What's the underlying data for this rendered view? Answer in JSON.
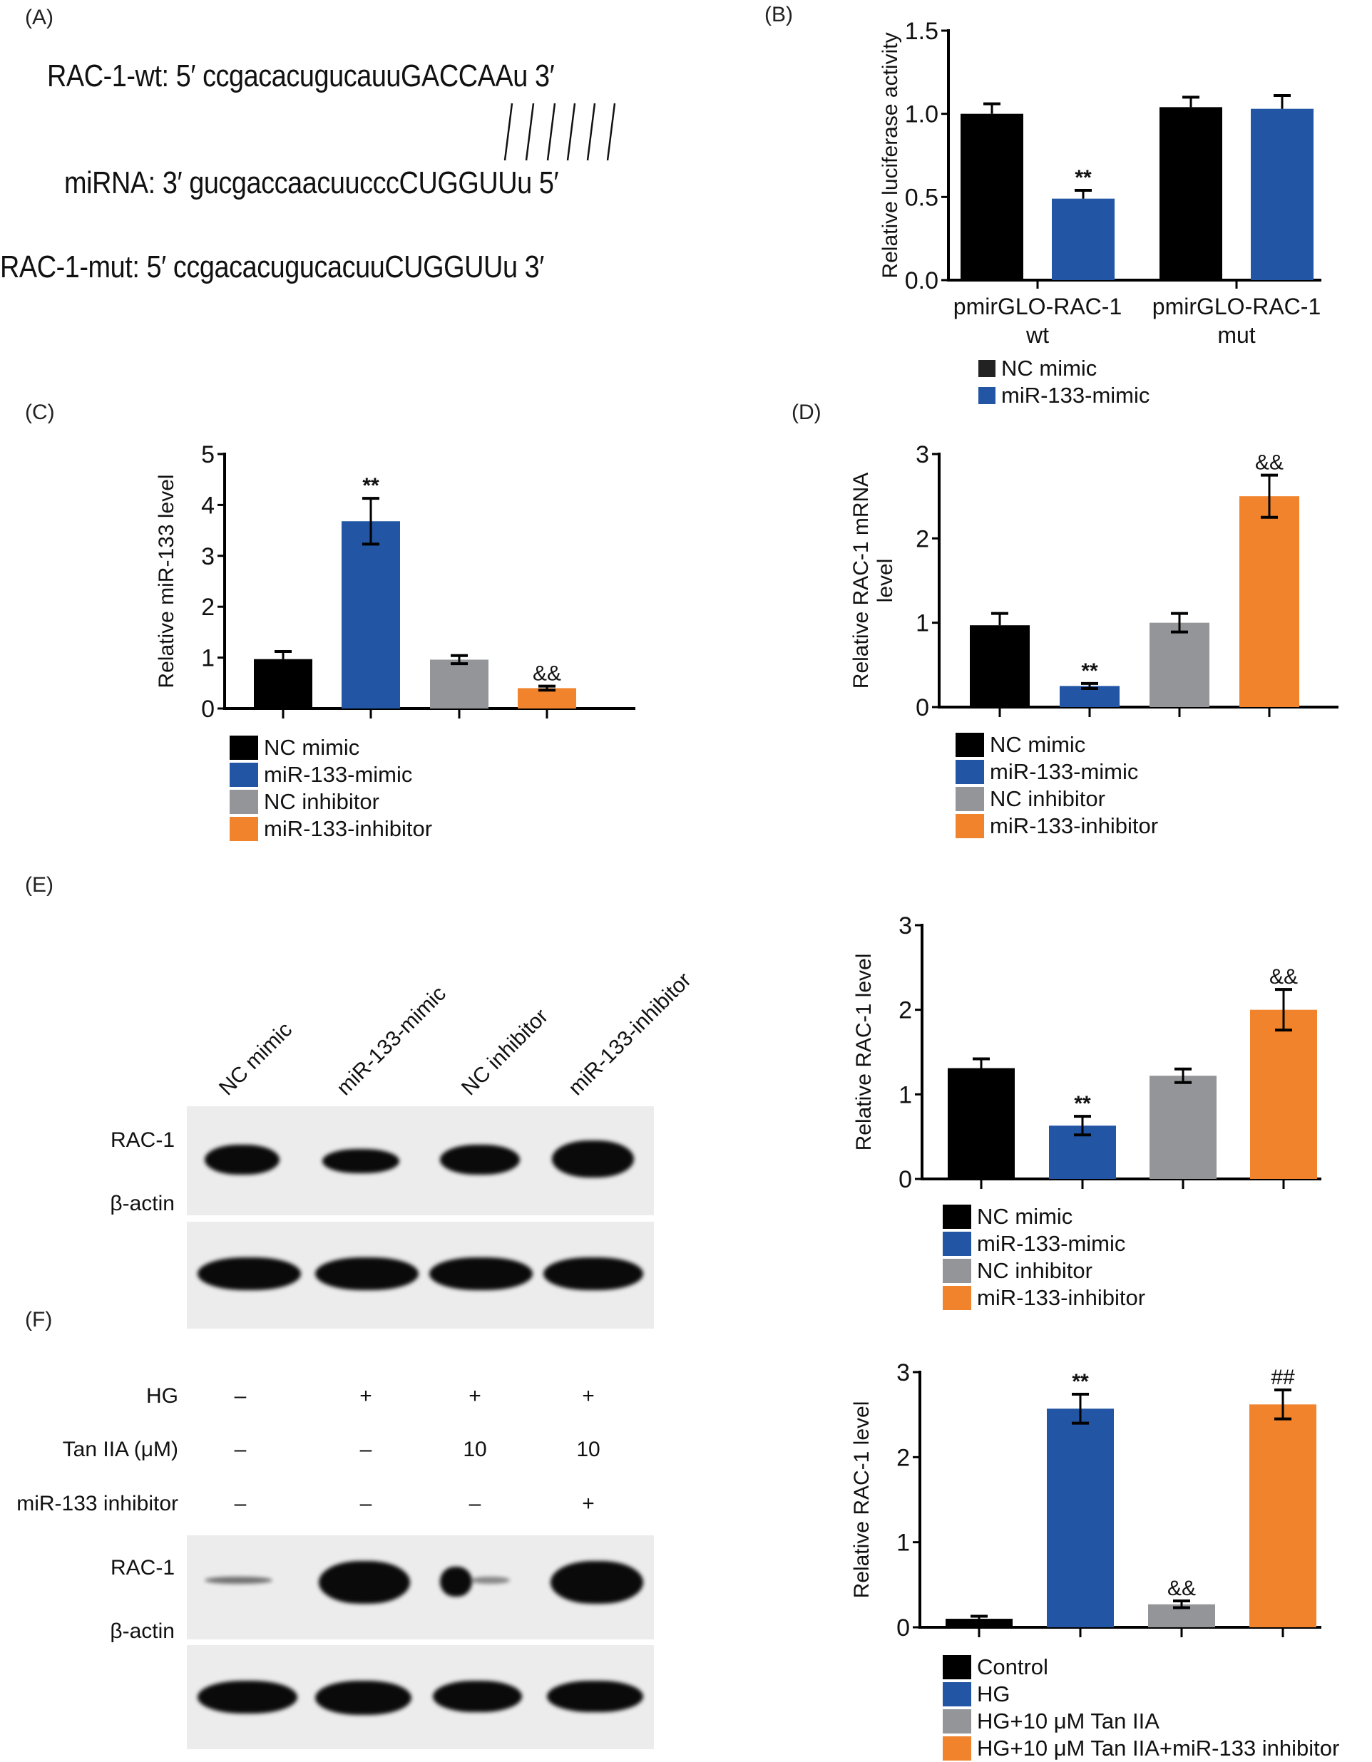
{
  "panels": {
    "A": {
      "label": "(A)",
      "wt": "RAC-1-wt: 5′ ccgacacugucauuGACCAAu 3′",
      "mirna": "miRNA: 3′ gucgaccaacuucccCUGGUUu 5′",
      "mut": "RAC-1-mut: 5′ ccgacacugucacuuCUGGUUu 3′",
      "pairing_lines": 6
    },
    "B": {
      "label": "(B)"
    },
    "C": {
      "label": "(C)"
    },
    "D": {
      "label": "(D)"
    },
    "E": {
      "label": "(E)",
      "lanes": [
        "NC mimic",
        "miR-133-mimic",
        "NC inhibitor",
        "miR-133-inhibitor"
      ],
      "rows": [
        "RAC-1",
        "β-actin"
      ]
    },
    "F": {
      "label": "(F)",
      "conditions": [
        {
          "name": "HG",
          "values": [
            "–",
            "+",
            "+",
            "+"
          ]
        },
        {
          "name": "Tan IIA (μM)",
          "values": [
            "–",
            "–",
            "10",
            "10"
          ]
        },
        {
          "name": "miR-133 inhibitor",
          "values": [
            "–",
            "–",
            "–",
            "+"
          ]
        }
      ],
      "rows": [
        "RAC-1",
        "β-actin"
      ]
    }
  },
  "colors": {
    "black": "#000000",
    "blue": "#2255a4",
    "gray": "#939598",
    "orange": "#f0832b"
  },
  "chart_data": [
    {
      "id": "B",
      "type": "bar",
      "title": "",
      "ylabel": "Relative luciferase activity",
      "xlabel": "",
      "ylim": [
        0,
        1.5
      ],
      "yticks": [
        "0.0",
        "0.5",
        "1.0",
        "1.5"
      ],
      "ytick_values": [
        0,
        0.5,
        1.0,
        1.5
      ],
      "categories": [
        "pmirGLO-RAC-1 wt",
        "pmirGLO-RAC-1 mut"
      ],
      "category_lines": [
        [
          "pmirGLO-RAC-1",
          "wt"
        ],
        [
          "pmirGLO-RAC-1",
          "mut"
        ]
      ],
      "series": [
        {
          "name": "NC mimic",
          "color": "#000000",
          "values": [
            1.0,
            1.04
          ],
          "errors": [
            0.06,
            0.06
          ],
          "annotations": [
            "",
            ""
          ]
        },
        {
          "name": "miR-133-mimic",
          "color": "#2255a4",
          "values": [
            0.49,
            1.03
          ],
          "errors": [
            0.05,
            0.08
          ],
          "annotations": [
            "**",
            ""
          ]
        }
      ],
      "legend": "bottom"
    },
    {
      "id": "C",
      "type": "bar",
      "title": "",
      "ylabel": "Relative miR-133 level",
      "xlabel": "",
      "ylim": [
        0,
        5
      ],
      "yticks": [
        "0",
        "1",
        "2",
        "3",
        "4",
        "5"
      ],
      "ytick_values": [
        0,
        1,
        2,
        3,
        4,
        5
      ],
      "categories": [
        "NC mimic",
        "miR-133-mimic",
        "NC inhibitor",
        "miR-133-inhibitor"
      ],
      "values": [
        0.97,
        3.68,
        0.96,
        0.4
      ],
      "errors": [
        0.15,
        0.45,
        0.08,
        0.04
      ],
      "error_style": [
        "up",
        "both",
        "both",
        "both"
      ],
      "colors": [
        "#000000",
        "#2255a4",
        "#939598",
        "#f0832b"
      ],
      "annotations": [
        "",
        "**",
        "",
        "&&"
      ],
      "legend": "bottom"
    },
    {
      "id": "D",
      "type": "bar",
      "title": "",
      "ylabel": "Relative RAC-1 mRNA level",
      "ylabel_lines": [
        "Relative RAC-1 mRNA",
        "level"
      ],
      "xlabel": "",
      "ylim": [
        0,
        3
      ],
      "yticks": [
        "0",
        "1",
        "2",
        "3"
      ],
      "ytick_values": [
        0,
        1,
        2,
        3
      ],
      "categories": [
        "NC mimic",
        "miR-133-mimic",
        "NC inhibitor",
        "miR-133-inhibitor"
      ],
      "values": [
        0.97,
        0.25,
        1.0,
        2.5
      ],
      "errors": [
        0.14,
        0.03,
        0.11,
        0.25
      ],
      "error_style": [
        "up",
        "both",
        "both",
        "both"
      ],
      "colors": [
        "#000000",
        "#2255a4",
        "#939598",
        "#f0832b"
      ],
      "annotations": [
        "",
        "**",
        "",
        "&&"
      ],
      "legend": "bottom"
    },
    {
      "id": "E",
      "type": "bar",
      "title": "",
      "ylabel": "Relative RAC-1 level",
      "xlabel": "",
      "ylim": [
        0,
        3
      ],
      "yticks": [
        "0",
        "1",
        "2",
        "3"
      ],
      "ytick_values": [
        0,
        1,
        2,
        3
      ],
      "categories": [
        "NC mimic",
        "miR-133-mimic",
        "NC inhibitor",
        "miR-133-inhibitor"
      ],
      "values": [
        1.31,
        0.63,
        1.22,
        2.0
      ],
      "errors": [
        0.11,
        0.11,
        0.08,
        0.24
      ],
      "error_style": [
        "up",
        "both",
        "both",
        "both"
      ],
      "colors": [
        "#000000",
        "#2255a4",
        "#939598",
        "#f0832b"
      ],
      "annotations": [
        "",
        "**",
        "",
        "&&"
      ],
      "legend": "bottom"
    },
    {
      "id": "F",
      "type": "bar",
      "title": "",
      "ylabel": "Relative RAC-1 level",
      "xlabel": "",
      "ylim": [
        0,
        3
      ],
      "yticks": [
        "0",
        "1",
        "2",
        "3"
      ],
      "ytick_values": [
        0,
        1,
        2,
        3
      ],
      "categories": [
        "Control",
        "HG",
        "HG+10 μM Tan IIA",
        "HG+10 μM Tan IIA+miR-133 inhibitor"
      ],
      "values": [
        0.1,
        2.57,
        0.27,
        2.62
      ],
      "errors": [
        0.03,
        0.17,
        0.04,
        0.17
      ],
      "error_style": [
        "up",
        "both",
        "both",
        "both"
      ],
      "colors": [
        "#000000",
        "#2255a4",
        "#939598",
        "#f0832b"
      ],
      "annotations": [
        "",
        "**",
        "&&",
        "##"
      ],
      "legend": "bottom"
    }
  ]
}
